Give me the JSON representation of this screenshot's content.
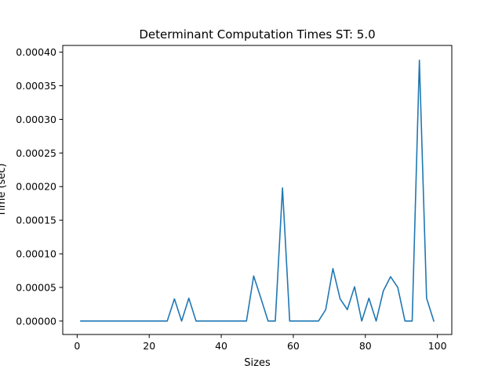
{
  "chart_data": {
    "type": "line",
    "title": "Determinant Computation Times ST: 5.0",
    "xlabel": "Sizes",
    "ylabel": "Time (sec)",
    "xlim": [
      -4,
      104
    ],
    "ylim": [
      -2e-05,
      0.00041
    ],
    "grid": false,
    "legend": "none",
    "x_ticks": [
      0,
      20,
      40,
      60,
      80,
      100
    ],
    "x_tick_labels": [
      "0",
      "20",
      "40",
      "60",
      "80",
      "100"
    ],
    "y_ticks": [
      0,
      5e-05,
      0.0001,
      0.00015,
      0.0002,
      0.00025,
      0.0003,
      0.00035,
      0.0004
    ],
    "y_tick_labels": [
      "0.00000",
      "0.00005",
      "0.00010",
      "0.00015",
      "0.00020",
      "0.00025",
      "0.00030",
      "0.00035",
      "0.00040"
    ],
    "series": [
      {
        "color": "#1f77b4",
        "x": [
          1,
          3,
          5,
          7,
          9,
          11,
          13,
          15,
          17,
          19,
          21,
          23,
          25,
          27,
          29,
          31,
          33,
          35,
          37,
          39,
          41,
          43,
          45,
          47,
          49,
          51,
          53,
          55,
          57,
          59,
          61,
          63,
          65,
          67,
          69,
          71,
          73,
          75,
          77,
          79,
          81,
          83,
          85,
          87,
          89,
          91,
          93,
          95,
          97,
          99
        ],
        "y": [
          0,
          0,
          0,
          0,
          0,
          0,
          0,
          0,
          0,
          0,
          0,
          0,
          0,
          3.3e-05,
          0,
          3.4e-05,
          0,
          0,
          0,
          0,
          0,
          0,
          0,
          0,
          6.7e-05,
          3.4e-05,
          0,
          0,
          0.000198,
          0,
          0,
          0,
          0,
          0,
          1.7e-05,
          7.8e-05,
          3.3e-05,
          1.7e-05,
          5.1e-05,
          0,
          3.4e-05,
          0,
          4.5e-05,
          6.6e-05,
          5e-05,
          0,
          0,
          0.000388,
          3.4e-05,
          0
        ]
      }
    ]
  }
}
